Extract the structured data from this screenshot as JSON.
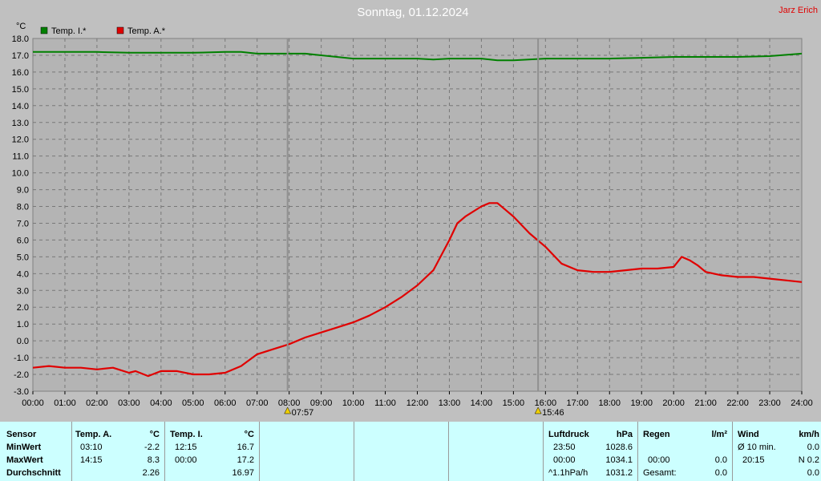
{
  "header": {
    "title": "Sonntag, 01.12.2024",
    "author": "Jarz Erich"
  },
  "chart_data": {
    "type": "line",
    "ylabel": "°C",
    "ylim": [
      -3,
      18
    ],
    "yticks": [
      "18.0",
      "17.0",
      "16.0",
      "15.0",
      "14.0",
      "13.0",
      "12.0",
      "11.0",
      "10.0",
      "9.0",
      "8.0",
      "7.0",
      "6.0",
      "5.0",
      "4.0",
      "3.0",
      "2.0",
      "1.0",
      "0.0",
      "-1.0",
      "-2.0",
      "-3.0"
    ],
    "xlim": [
      0,
      24
    ],
    "xticks": [
      "00:00",
      "01:00",
      "02:00",
      "03:00",
      "04:00",
      "05:00",
      "06:00",
      "07:00",
      "08:00",
      "09:00",
      "10:00",
      "11:00",
      "12:00",
      "13:00",
      "14:00",
      "15:00",
      "16:00",
      "17:00",
      "18:00",
      "19:00",
      "20:00",
      "21:00",
      "22:00",
      "23:00",
      "24:00"
    ],
    "grid": true,
    "legend_position": "top-left",
    "series": [
      {
        "name": "Temp. I.*",
        "color": "#008000",
        "x": [
          0,
          1,
          2,
          3,
          4,
          5,
          6,
          6.5,
          7,
          8,
          8.5,
          9,
          10,
          11,
          12,
          12.5,
          13,
          14,
          14.5,
          15,
          16,
          17,
          18,
          19,
          20,
          21,
          22,
          23,
          24
        ],
        "y": [
          17.2,
          17.2,
          17.2,
          17.15,
          17.15,
          17.15,
          17.2,
          17.2,
          17.1,
          17.1,
          17.1,
          17.0,
          16.8,
          16.8,
          16.8,
          16.75,
          16.8,
          16.8,
          16.7,
          16.7,
          16.8,
          16.8,
          16.8,
          16.85,
          16.9,
          16.9,
          16.9,
          16.95,
          17.1
        ]
      },
      {
        "name": "Temp. A.*",
        "color": "#e00000",
        "x": [
          0,
          0.5,
          1,
          1.5,
          2,
          2.5,
          3,
          3.2,
          3.6,
          4,
          4.5,
          5,
          5.5,
          6,
          6.5,
          7,
          7.5,
          8,
          8.5,
          9,
          9.5,
          10,
          10.5,
          11,
          11.5,
          12,
          12.5,
          13,
          13.25,
          13.5,
          14,
          14.25,
          14.5,
          14.75,
          15,
          15.5,
          16,
          16.5,
          17,
          17.5,
          18,
          18.5,
          19,
          19.5,
          20,
          20.25,
          20.5,
          20.75,
          21,
          21.5,
          22,
          22.5,
          23,
          23.5,
          24
        ],
        "y": [
          -1.6,
          -1.5,
          -1.6,
          -1.6,
          -1.7,
          -1.6,
          -1.9,
          -1.8,
          -2.1,
          -1.8,
          -1.8,
          -2.0,
          -2.0,
          -1.9,
          -1.5,
          -0.8,
          -0.5,
          -0.2,
          0.2,
          0.5,
          0.8,
          1.1,
          1.5,
          2.0,
          2.6,
          3.3,
          4.2,
          6.0,
          7.0,
          7.4,
          8.0,
          8.2,
          8.2,
          7.8,
          7.4,
          6.4,
          5.6,
          4.6,
          4.2,
          4.1,
          4.1,
          4.2,
          4.3,
          4.3,
          4.4,
          5.0,
          4.8,
          4.5,
          4.1,
          3.9,
          3.8,
          3.8,
          3.7,
          3.6,
          3.5
        ]
      }
    ],
    "annotations": [
      {
        "label": "07:57",
        "x": 7.95
      },
      {
        "label": "15:46",
        "x": 15.77
      }
    ]
  },
  "stats": {
    "row_labels": {
      "header": "Sensor",
      "min": "MinWert",
      "max": "MaxWert",
      "avg": "Durchschnitt"
    },
    "temp_a": {
      "header": "Temp. A.",
      "unit": "°C",
      "min_time": "03:10",
      "min_value": "-2.2",
      "max_time": "14:15",
      "max_value": "8.3",
      "avg": "2.26"
    },
    "temp_i": {
      "header": "Temp. I.",
      "unit": "°C",
      "min_time": "12:15",
      "min_value": "16.7",
      "max_time": "00:00",
      "max_value": "17.2",
      "avg": "16.97"
    },
    "pressure": {
      "header": "Luftdruck",
      "unit": "hPa",
      "min_time": "23:50",
      "min_value": "1028.6",
      "max_time": "00:00",
      "max_value": "1034.1",
      "trend": "^1.1hPa/h",
      "avg": "1031.2"
    },
    "rain": {
      "header": "Regen",
      "unit": "l/m²",
      "max_time": "00:00",
      "max_value": "0.0",
      "total_label": "Gesamt:",
      "total": "0.0"
    },
    "wind": {
      "header": "Wind",
      "unit": "km/h",
      "avg_label": "Ø 10 min.",
      "avg_value": "0.0",
      "max_time": "20:15",
      "max_value": "N 0.2",
      "other": "0.0"
    }
  }
}
